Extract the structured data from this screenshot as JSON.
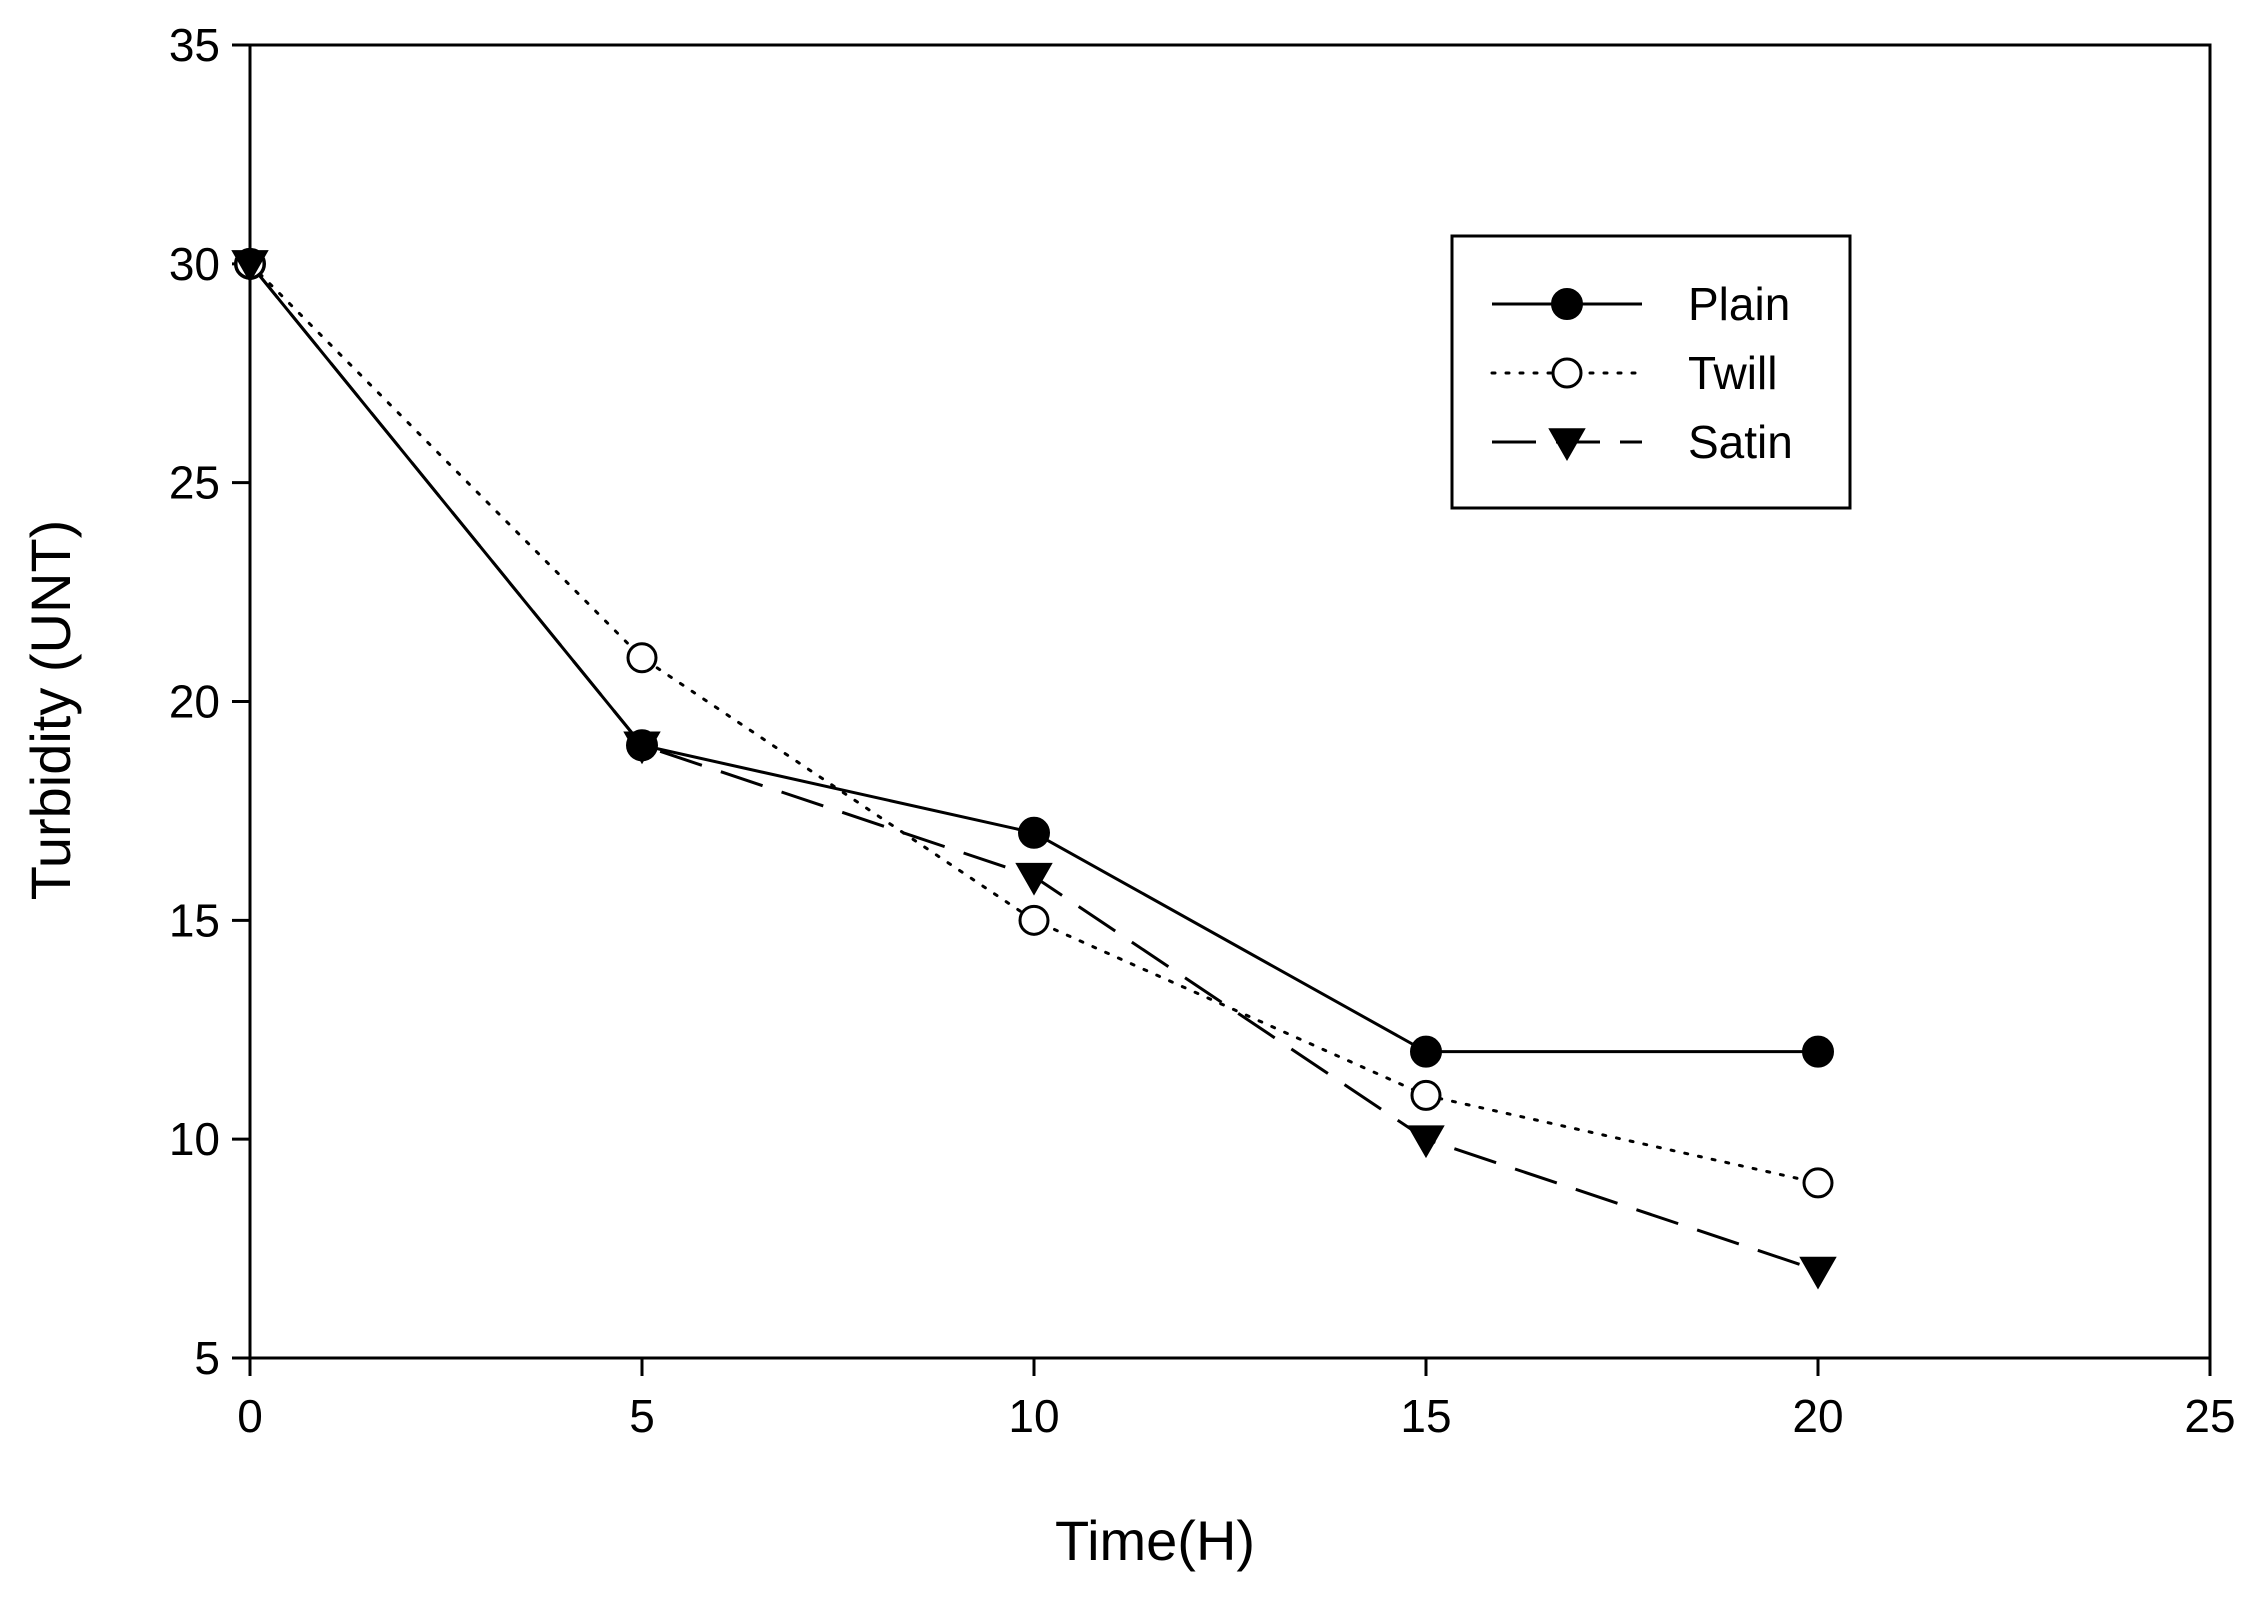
{
  "chart_data": {
    "type": "line",
    "title": "",
    "xlabel": "Time(H)",
    "ylabel": "Turbidity (UNT)",
    "xlim": [
      0,
      25
    ],
    "ylim": [
      5,
      35
    ],
    "x_ticks": [
      0,
      5,
      10,
      15,
      20,
      25
    ],
    "y_ticks": [
      5,
      10,
      15,
      20,
      25,
      30,
      35
    ],
    "grid": false,
    "legend_position": "top-right",
    "x": [
      0,
      5,
      10,
      15,
      20
    ],
    "series": [
      {
        "name": "Plain",
        "values": [
          30,
          19,
          17,
          12,
          12
        ],
        "marker": "filled-circle",
        "line_style": "solid"
      },
      {
        "name": "Twill",
        "values": [
          30,
          21,
          15,
          11,
          9
        ],
        "marker": "open-circle",
        "line_style": "dotted"
      },
      {
        "name": "Satin",
        "values": [
          30,
          19,
          16,
          10,
          7
        ],
        "marker": "filled-triangle-down",
        "line_style": "dashed"
      }
    ],
    "colors": {
      "line": "#000000",
      "marker_fill": "#000000",
      "background": "#ffffff"
    }
  }
}
